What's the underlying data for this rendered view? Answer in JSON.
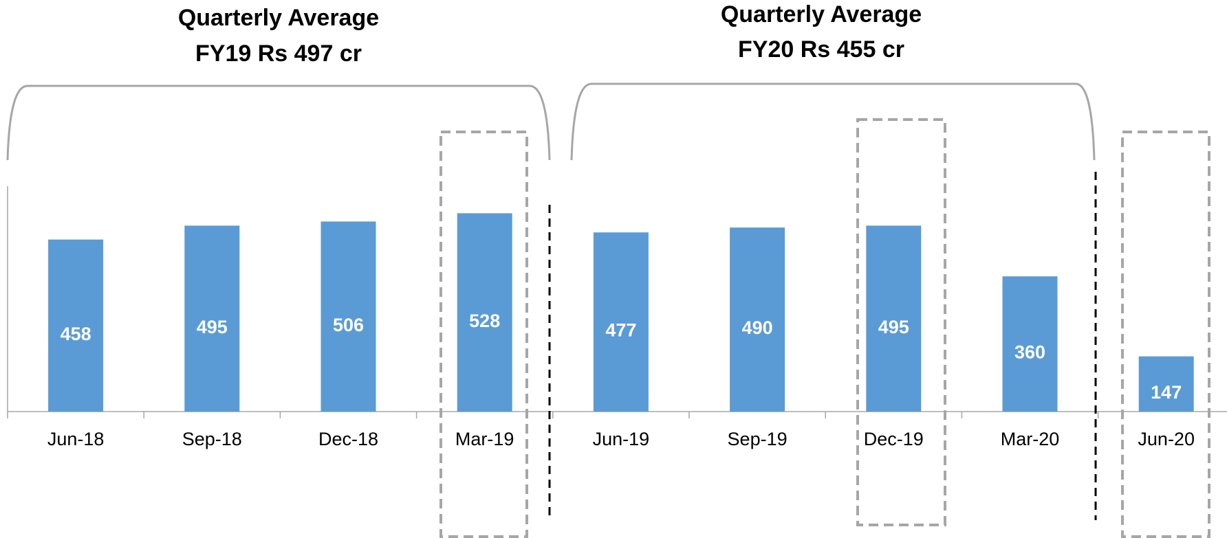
{
  "chart_data": {
    "type": "bar",
    "annotations": [
      {
        "lines": [
          "Quarterly Average",
          "FY19 Rs 497 cr"
        ]
      },
      {
        "lines": [
          "Quarterly Average",
          "FY20 Rs 455 cr"
        ]
      }
    ],
    "categories": [
      "Jun-18",
      "Sep-18",
      "Dec-18",
      "Mar-19",
      "Jun-19",
      "Sep-19",
      "Dec-19",
      "Mar-20",
      "Jun-20"
    ],
    "values": [
      458,
      495,
      506,
      528,
      477,
      490,
      495,
      360,
      147
    ],
    "color": "#5b9bd5",
    "ylim": [
      0,
      600
    ]
  }
}
